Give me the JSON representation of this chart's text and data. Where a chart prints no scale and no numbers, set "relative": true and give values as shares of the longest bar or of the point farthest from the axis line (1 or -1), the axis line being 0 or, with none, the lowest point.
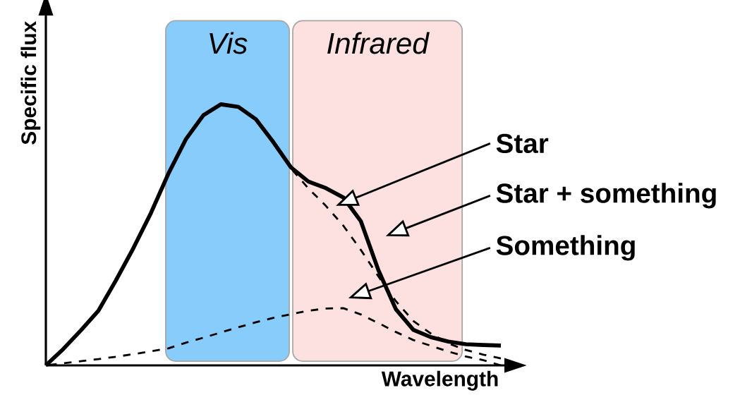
{
  "chart_data": {
    "type": "line",
    "relative": true,
    "xlabel": "Wavelength",
    "ylabel": "Specific flux",
    "marker": "none",
    "categories": [
      null,
      null,
      null,
      null,
      null,
      null,
      null,
      null,
      null,
      null,
      null,
      null,
      null,
      null,
      null,
      null,
      null,
      null,
      null,
      null,
      null,
      null,
      null,
      null,
      null,
      null,
      null
    ],
    "annotations": [
      "Vis",
      "Infrared",
      "Star",
      "Star + something",
      "Something"
    ],
    "series": [
      {
        "color": "#000000",
        "line_style": "dashed",
        "values": [
          0,
          0.063,
          0.134,
          0.209,
          0.325,
          0.449,
          0.583,
          0.734,
          0.866,
          0.958,
          1,
          0.99,
          0.943,
          0.855,
          0.755,
          0.678,
          0.611,
          0.535,
          0.442,
          0.341,
          0.246,
          0.17,
          0.122,
          0.084,
          0.059,
          0.041,
          0.027
        ]
      },
      {
        "color": "#000000",
        "line_style": "solid",
        "values": [
          0,
          0.063,
          0.134,
          0.209,
          0.325,
          0.449,
          0.583,
          0.734,
          0.866,
          0.958,
          1,
          0.99,
          0.943,
          0.855,
          0.759,
          0.704,
          0.679,
          0.643,
          0.552,
          0.365,
          0.215,
          0.136,
          0.108,
          0.091,
          0.081,
          0.078,
          0.076
        ]
      },
      {
        "color": "#000000",
        "line_style": "dashed",
        "values": [
          0,
          0.008,
          0.016,
          0.024,
          0.033,
          0.043,
          0.054,
          0.065,
          0.087,
          0.106,
          0.126,
          0.146,
          0.165,
          0.182,
          0.196,
          0.209,
          0.218,
          0.219,
          0.195,
          0.162,
          0.128,
          0.097,
          0.075,
          0.053,
          0.034,
          0.02,
          0
        ]
      }
    ]
  }
}
